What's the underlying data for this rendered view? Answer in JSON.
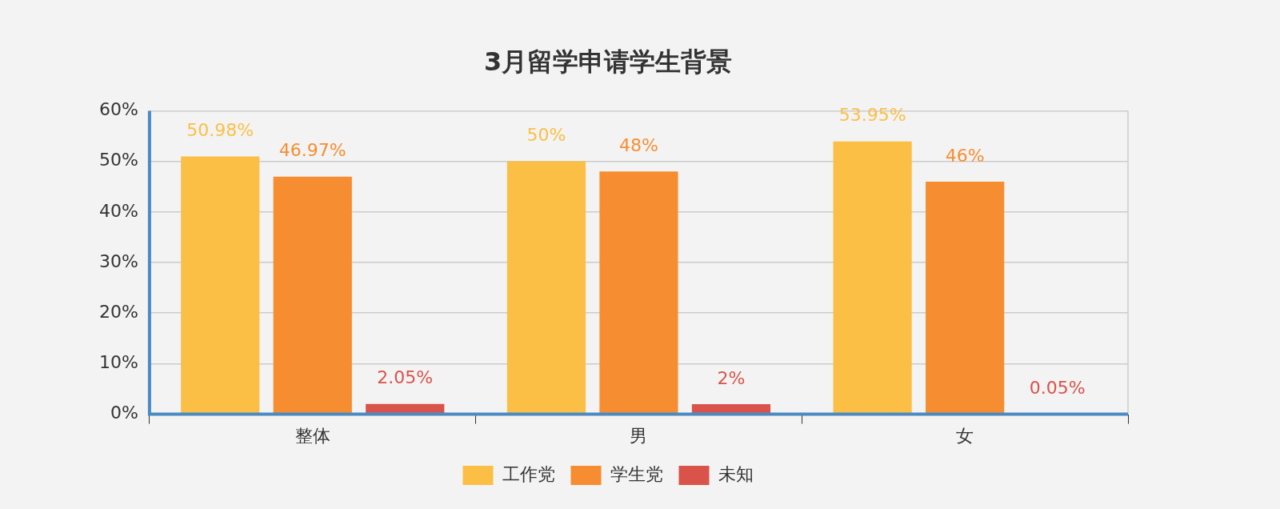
{
  "chart_data": {
    "type": "bar",
    "title": "3月留学申请学生背景",
    "categories": [
      "整体",
      "男",
      "女"
    ],
    "series": [
      {
        "name": "工作党",
        "color": "#fbbf45",
        "values": [
          50.98,
          50,
          53.95
        ],
        "value_labels": [
          "50.98%",
          "50%",
          "53.95%"
        ]
      },
      {
        "name": "学生党",
        "color": "#f68e31",
        "values": [
          46.97,
          48,
          46
        ],
        "value_labels": [
          "46.97%",
          "48%",
          "46%"
        ]
      },
      {
        "name": "未知",
        "color": "#d9534a",
        "values": [
          2.05,
          2,
          0.05
        ],
        "value_labels": [
          "2.05%",
          "2%",
          "0.05%"
        ]
      }
    ],
    "ylim": [
      0,
      60
    ],
    "yticks": [
      {
        "value": 0,
        "label": "0%"
      },
      {
        "value": 10,
        "label": "10%"
      },
      {
        "value": 20,
        "label": "20%"
      },
      {
        "value": 30,
        "label": "30%"
      },
      {
        "value": 40,
        "label": "40%"
      },
      {
        "value": 50,
        "label": "50%"
      },
      {
        "value": 60,
        "label": "60%"
      }
    ],
    "grid": "y",
    "legend": "bottom"
  }
}
